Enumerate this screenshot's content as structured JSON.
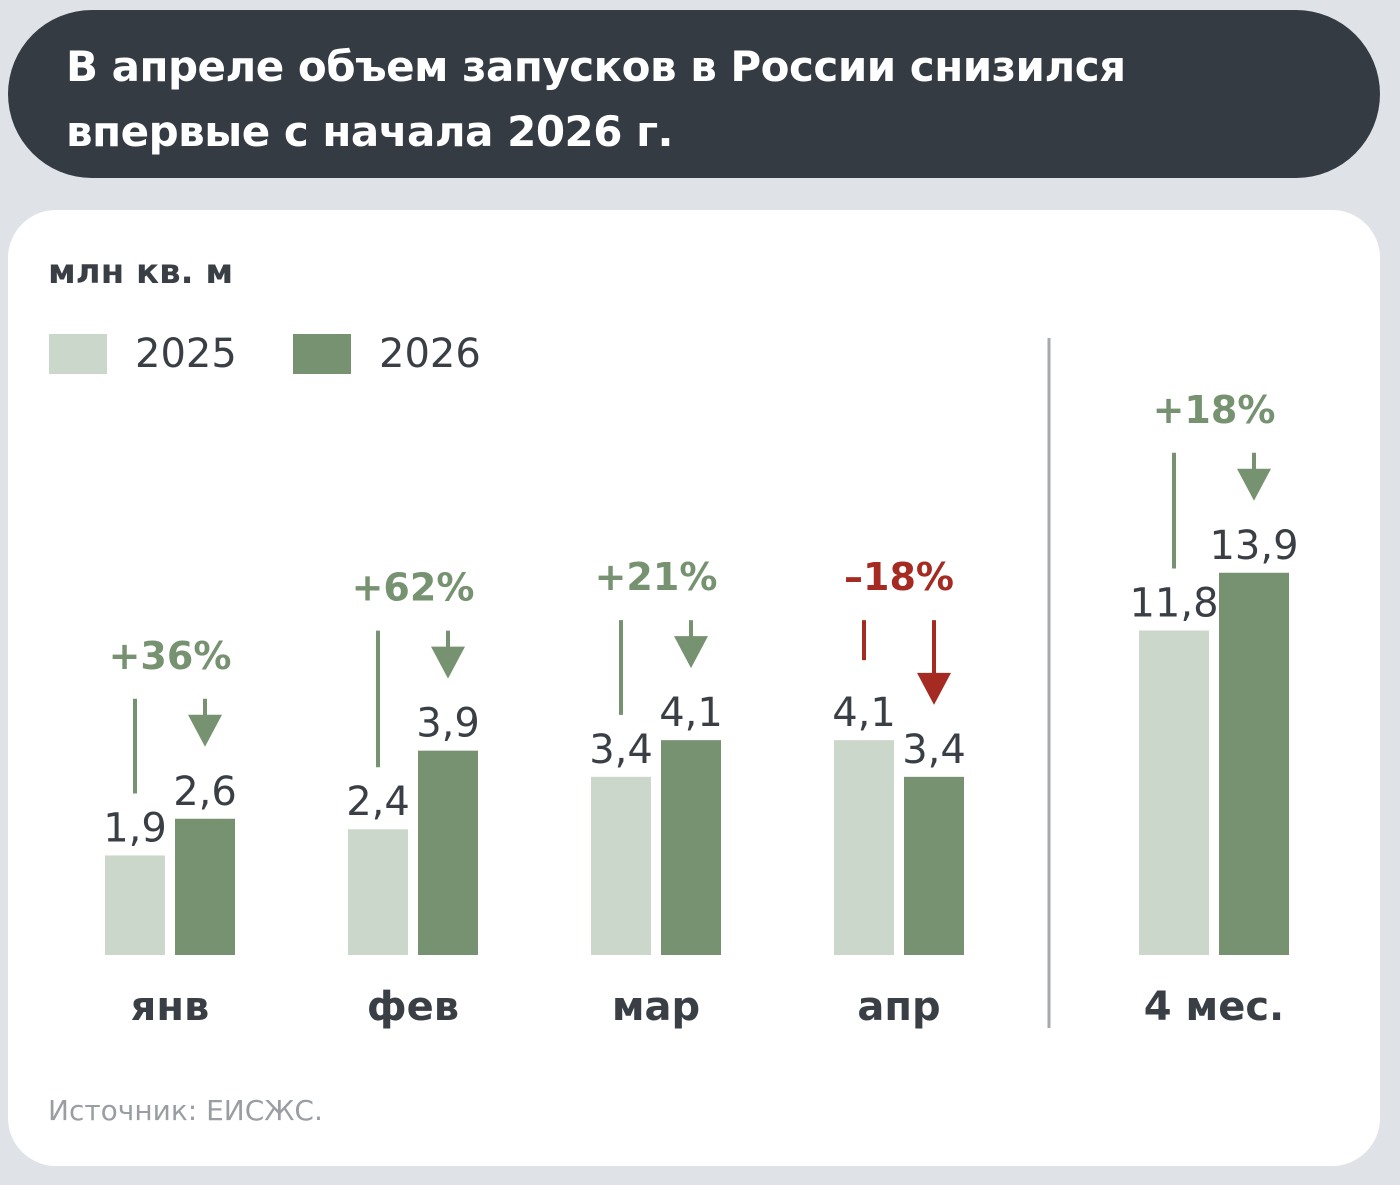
{
  "header": {
    "title_line1": "В апреле объем запусков в России снизился",
    "title_line2": "впервые с начала 2026 г."
  },
  "chart_data": {
    "type": "bar",
    "unit": "млн кв. м",
    "categories": [
      "янв",
      "фев",
      "мар",
      "апр",
      "4 мес."
    ],
    "series": [
      {
        "name": "2025",
        "color": "#ccd7cb",
        "values": [
          1.9,
          2.4,
          3.4,
          4.1,
          11.8
        ],
        "labels": [
          "1,9",
          "2,4",
          "3,4",
          "4,1",
          "11,8"
        ]
      },
      {
        "name": "2026",
        "color": "#769271",
        "values": [
          2.6,
          3.9,
          4.1,
          3.4,
          13.9
        ],
        "labels": [
          "2,6",
          "3,9",
          "4,1",
          "3,4",
          "13,9"
        ]
      }
    ],
    "changes": [
      {
        "label": "+36%",
        "direction": "up",
        "color": "#769271"
      },
      {
        "label": "+62%",
        "direction": "up",
        "color": "#769271"
      },
      {
        "label": "+21%",
        "direction": "up",
        "color": "#769271"
      },
      {
        "label": "–18%",
        "direction": "down",
        "color": "#a52a22"
      },
      {
        "label": "+18%",
        "direction": "up",
        "color": "#769271"
      }
    ],
    "legend_position": "top-left",
    "grid": false
  },
  "source": "Источник: ЕИСЖС."
}
